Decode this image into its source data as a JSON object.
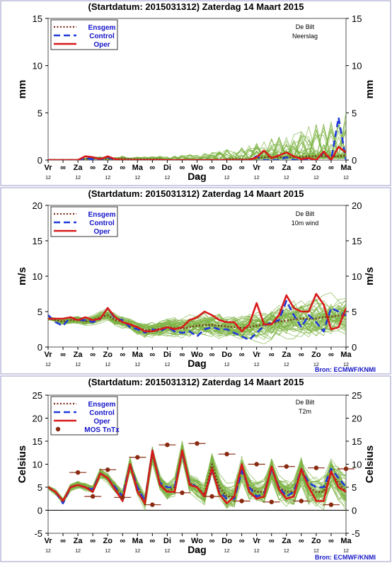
{
  "x_labels": [
    "Vr",
    "∞",
    "Za",
    "∞",
    "Zo",
    "∞",
    "Ma",
    "∞",
    "Di",
    "∞",
    "Wo",
    "∞",
    "Do",
    "∞",
    "Vr",
    "∞",
    "Za",
    "∞",
    "Zo",
    "∞",
    "Ma"
  ],
  "hour_labels": [
    "12",
    "",
    "12",
    "",
    "12",
    "",
    "12",
    "",
    "12",
    "",
    "12",
    "",
    "12",
    "",
    "12",
    "",
    "12",
    "",
    "12",
    "",
    "12"
  ],
  "chart_data": [
    {
      "type": "line",
      "title": "(Startdatum: 2015031312)   Zaterdag  14 Maart     2015",
      "xlabel": "Dag",
      "ylabel": "mm",
      "location": "De Bilt",
      "variable": "Neerslag",
      "ylim": [
        0,
        15
      ],
      "yticks": [
        0,
        5,
        10,
        15
      ],
      "legend": [
        "Ensgem",
        "Control",
        "Oper"
      ],
      "source": "",
      "series": [
        {
          "name": "Ensgem",
          "values": [
            0,
            0,
            0,
            0,
            0,
            0.1,
            0.2,
            0.2,
            0.1,
            0.1,
            0.2,
            0.1,
            0.1,
            0.1,
            0.1,
            0.1,
            0,
            0,
            0,
            0,
            0,
            0,
            0,
            0,
            0.1,
            0.1,
            0.1,
            0.1,
            0.2,
            0.3,
            0.3,
            0.3,
            0.3,
            0.3,
            0.3,
            0.4,
            0.4,
            0.4,
            0.4,
            0.4,
            0.5
          ]
        },
        {
          "name": "Control",
          "values": [
            0,
            0,
            0,
            0,
            0,
            0.2,
            0.1,
            0,
            0.3,
            0,
            0,
            0,
            0,
            0,
            0,
            0,
            0,
            0,
            0,
            0,
            0,
            0,
            0,
            0,
            0,
            0,
            0,
            0,
            0.4,
            0,
            0,
            0,
            0.3,
            0,
            0,
            0,
            0,
            0.8,
            0,
            4.5,
            0
          ]
        },
        {
          "name": "Oper",
          "values": [
            0,
            0,
            0,
            0,
            0,
            0.4,
            0.3,
            0.1,
            0.4,
            0.1,
            0,
            0,
            0,
            0,
            0,
            0,
            0,
            0,
            0,
            0,
            0,
            0,
            0,
            0,
            0,
            0,
            0,
            0,
            0.3,
            1.0,
            0.2,
            0.5,
            0.8,
            0.4,
            0.1,
            0.2,
            0,
            0.9,
            0,
            1.4,
            0.8
          ]
        }
      ]
    },
    {
      "type": "line",
      "title": "(Startdatum: 2015031312)   Zaterdag  14 Maart     2015",
      "xlabel": "Dag",
      "ylabel": "m/s",
      "location": "De Bilt",
      "variable": "10m wind",
      "ylim": [
        0,
        20
      ],
      "yticks": [
        0,
        5,
        10,
        15,
        20
      ],
      "legend": [
        "Ensgem",
        "Control",
        "Oper"
      ],
      "source": "Bron: ECMWF/KNMI",
      "series": [
        {
          "name": "Ensgem",
          "values": [
            4,
            3.8,
            3.6,
            3.8,
            3.8,
            3.6,
            3.8,
            4.2,
            4.5,
            3.8,
            3.6,
            3.1,
            2.7,
            2.4,
            2.4,
            2.6,
            2.8,
            2.7,
            2.6,
            2.8,
            3.0,
            3.1,
            3.1,
            3.0,
            2.9,
            2.8,
            2.7,
            2.8,
            3.0,
            3.1,
            3.3,
            3.6,
            3.7,
            3.9,
            4.0,
            4.0,
            4.0,
            4.2,
            4.3,
            4.4,
            4.5
          ]
        },
        {
          "name": "Control",
          "values": [
            4.5,
            3.5,
            3.0,
            4.2,
            3.8,
            3.8,
            3.5,
            4.0,
            5.5,
            4.0,
            3.8,
            2.8,
            2.5,
            2.0,
            2.5,
            2.2,
            2.8,
            2.2,
            2.0,
            2.2,
            1.5,
            2.5,
            2.8,
            2.5,
            2.5,
            2.0,
            1.5,
            1.0,
            2.0,
            3.0,
            3.5,
            3.8,
            6.5,
            4.5,
            2.8,
            4.5,
            3.5,
            2.2,
            5.5,
            5.0,
            4.5
          ]
        },
        {
          "name": "Oper",
          "values": [
            4.0,
            4.0,
            4.0,
            4.2,
            3.8,
            4.2,
            3.8,
            4.0,
            5.5,
            4.2,
            3.5,
            3.2,
            2.8,
            2.2,
            2.2,
            2.5,
            2.8,
            2.5,
            2.8,
            3.8,
            4.2,
            5.0,
            4.5,
            3.8,
            3.5,
            3.5,
            2.2,
            3.2,
            6.2,
            3.2,
            3.2,
            4.5,
            7.3,
            5.5,
            5.0,
            5.0,
            7.5,
            6.0,
            2.5,
            2.8,
            5.5
          ]
        }
      ]
    },
    {
      "type": "line",
      "title": "(Startdatum: 2015031312)   Zaterdag  14 Maart     2015",
      "xlabel": "Dag",
      "ylabel": "Celsius",
      "location": "De Bilt",
      "variable": "T2m",
      "ylim": [
        -5,
        25
      ],
      "yticks": [
        -5,
        0,
        5,
        10,
        15,
        20,
        25
      ],
      "legend": [
        "Ensgem",
        "Control",
        "Oper",
        "MOS TnTx"
      ],
      "source": "Bron: ECMWF/KNMI",
      "series": [
        {
          "name": "Ensgem",
          "values": [
            5,
            4,
            2,
            5,
            5.5,
            5,
            4.5,
            8,
            7,
            5,
            3,
            10,
            5,
            2,
            12,
            6,
            4,
            5,
            13,
            6,
            5,
            3.5,
            10,
            5,
            3,
            3,
            9,
            5,
            4,
            4,
            9,
            5,
            4,
            4,
            8.5,
            5,
            4,
            4,
            8,
            6,
            4
          ]
        },
        {
          "name": "Control",
          "values": [
            5,
            4,
            1.5,
            5,
            5.5,
            5,
            4.5,
            8,
            7,
            5,
            3,
            10,
            5,
            2,
            13,
            6,
            5,
            5,
            12.5,
            6,
            5,
            3,
            8.5,
            4,
            2.5,
            2.5,
            8.5,
            5,
            3,
            3.5,
            9,
            5,
            3,
            4,
            9,
            6,
            5,
            5,
            9,
            7,
            5
          ]
        },
        {
          "name": "Oper",
          "values": [
            5,
            4,
            2,
            5,
            5.5,
            5,
            4,
            8,
            7,
            4.5,
            2,
            10,
            4,
            1.5,
            13,
            5.5,
            4,
            4,
            13,
            5.5,
            5,
            3,
            9,
            3.5,
            1.5,
            3,
            10,
            4,
            2.5,
            3,
            9.5,
            4.5,
            2.5,
            3,
            9,
            5,
            2,
            2,
            8.5,
            5,
            4
          ]
        },
        {
          "name": "MOS TnTx",
          "points": [
            [
              2,
              8.2
            ],
            [
              3,
              3
            ],
            [
              4,
              8.8
            ],
            [
              5,
              2.8
            ],
            [
              6,
              11.5
            ],
            [
              7,
              1.2
            ],
            [
              8,
              14.2
            ],
            [
              9,
              3.8
            ],
            [
              10,
              14.5
            ],
            [
              11,
              3
            ],
            [
              12,
              12.2
            ],
            [
              13,
              2
            ],
            [
              14,
              10
            ],
            [
              15,
              1.8
            ],
            [
              16,
              9.5
            ],
            [
              17,
              2
            ],
            [
              18,
              9.2
            ],
            [
              19,
              1.2
            ],
            [
              20,
              9
            ]
          ]
        }
      ]
    }
  ],
  "colors": {
    "ensgem": "#7a2a1a",
    "control": "#1f3ad9",
    "oper": "#d81a1a",
    "members": "#7cb342",
    "frame": "#555555",
    "source": "#1414c8"
  }
}
